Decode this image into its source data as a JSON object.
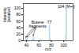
{
  "chart_data": {
    "type": "bar",
    "xlabel": "m/z",
    "ylabel": "Intensity\n(relative)",
    "x": [
      39,
      41,
      50,
      51,
      52,
      63,
      77,
      78,
      103,
      104
    ],
    "values": [
      10,
      7,
      5,
      15,
      5,
      5,
      50,
      10,
      15,
      100
    ],
    "color": "#b8d8f0",
    "xlim": [
      35,
      115
    ],
    "ylim": [
      0,
      115
    ],
    "xticks": [
      40,
      60,
      80,
      100
    ],
    "yticks": [
      0,
      20,
      40,
      60,
      80,
      100
    ],
    "grid": false,
    "annotations": [
      {
        "text": "Butene\nfragments",
        "x": 58,
        "y": 50,
        "arrow_to": [
          41,
          11
        ]
      },
      {
        "text": "77",
        "x": 77,
        "y": 52
      },
      {
        "text": "104 (M+•)",
        "x": 104,
        "y": 102
      }
    ],
    "arrows": [
      {
        "from": [
          54,
          44
        ],
        "to": [
          39,
          11
        ]
      },
      {
        "from": [
          56,
          44
        ],
        "to": [
          51,
          16
        ]
      }
    ]
  }
}
